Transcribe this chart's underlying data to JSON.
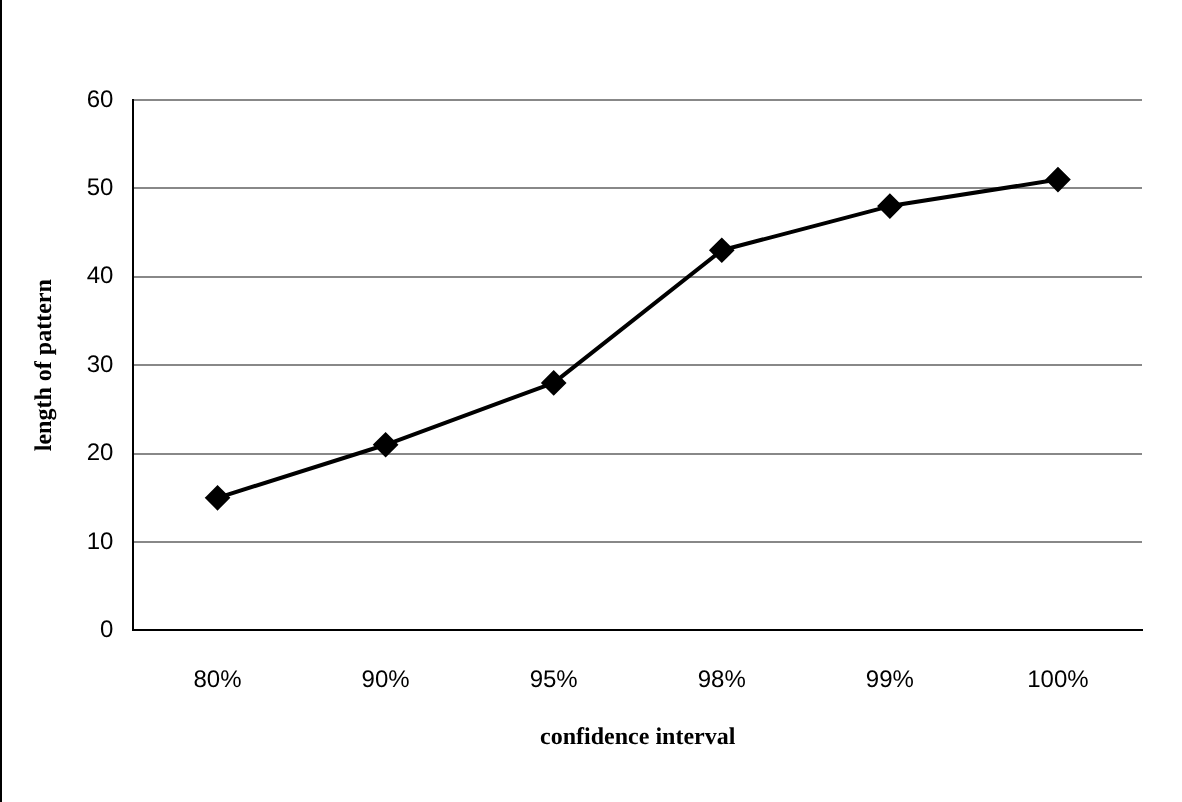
{
  "chart_data": {
    "type": "line",
    "xlabel": "confidence interval",
    "ylabel": "length of pattern",
    "categories": [
      "80%",
      "90%",
      "95%",
      "98%",
      "99%",
      "100%"
    ],
    "series": [
      {
        "color": "#000000",
        "values": [
          15,
          21,
          28,
          43,
          48,
          51
        ]
      }
    ],
    "ylim": [
      0,
      60
    ],
    "yticks": [
      0,
      10,
      20,
      30,
      40,
      50,
      60
    ],
    "grid": "y",
    "legend": false,
    "marker": "diamond",
    "line_style": "solid"
  }
}
